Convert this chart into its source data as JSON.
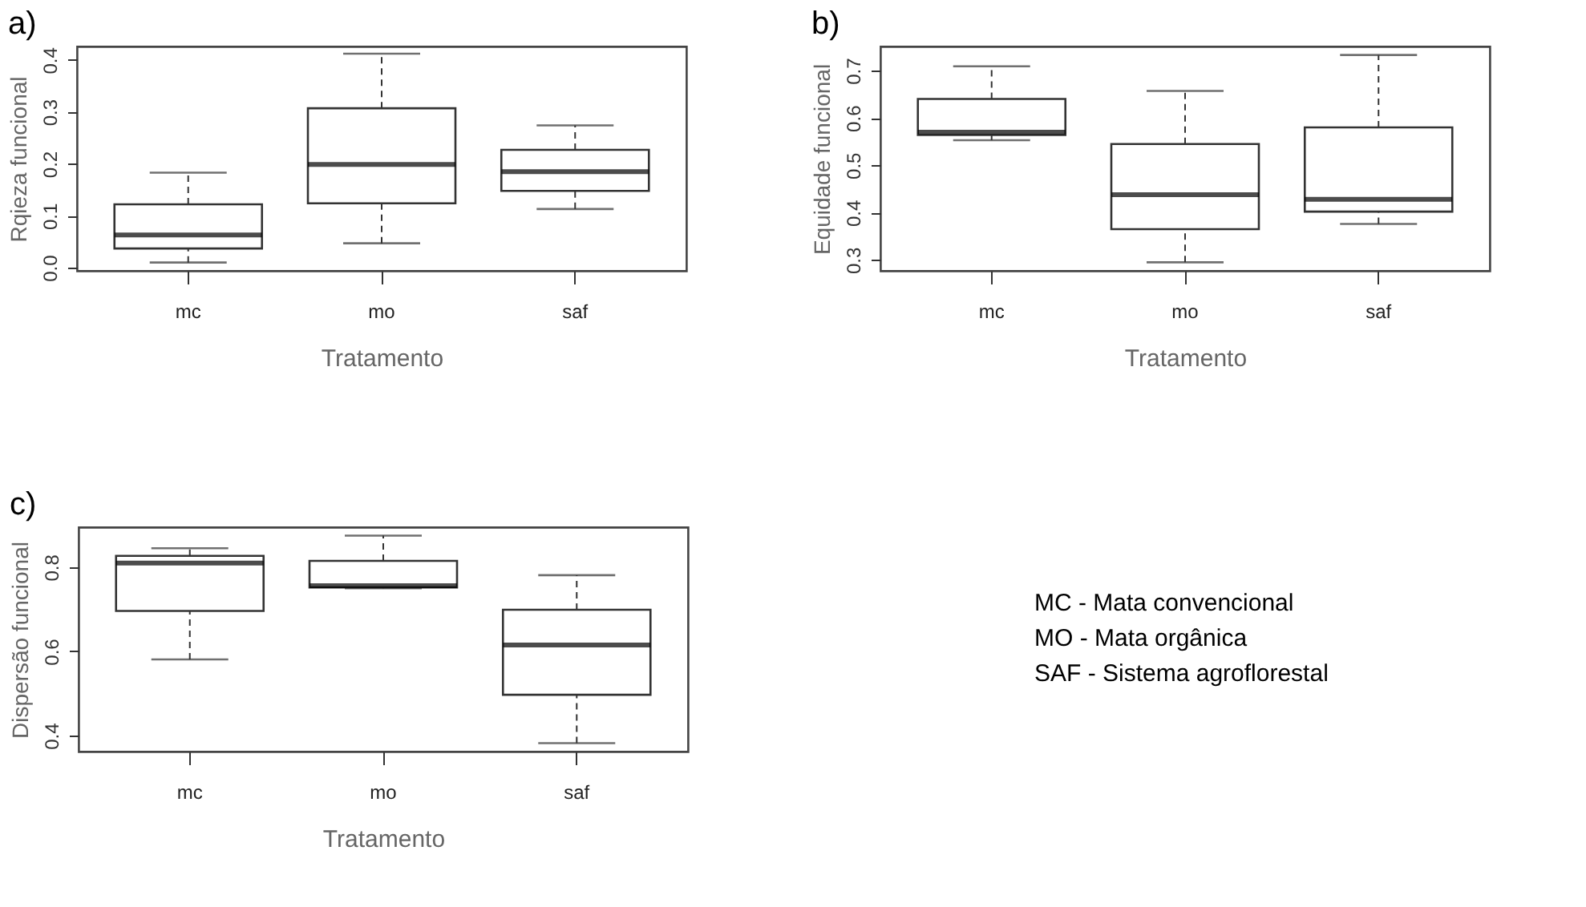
{
  "chart_data": [
    {
      "type": "box",
      "title": "a)",
      "xlabel": "Tratamento",
      "ylabel": "Rqieza funcional",
      "categories": [
        "mc",
        "mo",
        "saf"
      ],
      "ylim": [
        -0.006,
        0.426
      ],
      "yticks": [
        {
          "value": 0,
          "label": "0.0"
        },
        0.1,
        0.2,
        0.3,
        0.4
      ],
      "boxes": [
        {
          "low": 0.01,
          "q1": 0.037,
          "median": 0.063,
          "q3": 0.122,
          "high": 0.183
        },
        {
          "low": 0.047,
          "q1": 0.124,
          "median": 0.199,
          "q3": 0.307,
          "high": 0.412
        },
        {
          "low": 0.113,
          "q1": 0.148,
          "median": 0.185,
          "q3": 0.227,
          "high": 0.274
        }
      ]
    },
    {
      "type": "box",
      "title": "b)",
      "xlabel": "Tratamento",
      "ylabel": "Equidade funcional",
      "categories": [
        "mc",
        "mo",
        "saf"
      ],
      "ylim": [
        0.277,
        0.751
      ],
      "yticks": [
        0.3,
        0.4,
        0.5,
        0.6,
        0.7
      ],
      "boxes": [
        {
          "low": 0.553,
          "q1": 0.564,
          "median": 0.57,
          "q3": 0.64,
          "high": 0.709
        },
        {
          "low": 0.295,
          "q1": 0.365,
          "median": 0.438,
          "q3": 0.545,
          "high": 0.657
        },
        {
          "low": 0.376,
          "q1": 0.402,
          "median": 0.428,
          "q3": 0.58,
          "high": 0.733
        }
      ]
    },
    {
      "type": "box",
      "title": "c)",
      "xlabel": "Tratamento",
      "ylabel": "Dispersão funcional",
      "categories": [
        "mc",
        "mo",
        "saf"
      ],
      "ylim": [
        0.362,
        0.895
      ],
      "yticks": [
        0.4,
        0.6,
        0.8
      ],
      "boxes": [
        {
          "low": 0.581,
          "q1": 0.696,
          "median": 0.81,
          "q3": 0.827,
          "high": 0.845
        },
        {
          "low": 0.75,
          "q1": 0.752,
          "median": 0.756,
          "q3": 0.815,
          "high": 0.875
        },
        {
          "low": 0.382,
          "q1": 0.497,
          "median": 0.615,
          "q3": 0.699,
          "high": 0.781
        }
      ]
    },
    {
      "type": "other",
      "annotations": [
        "MC - Mata convencional",
        "MO - Mata orgânica",
        "SAF - Sistema agroflorestal"
      ]
    }
  ]
}
